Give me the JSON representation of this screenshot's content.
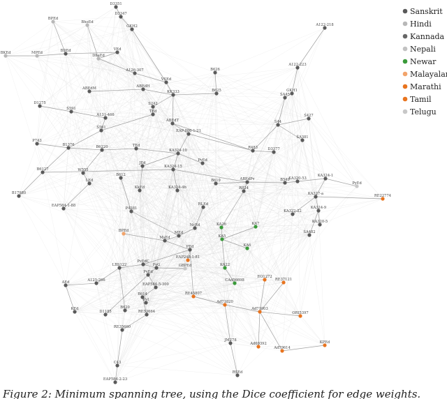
{
  "colors": {
    "Sanskrit": "#5a5a5a",
    "Hindi": "#b8b8b8",
    "Kannada": "#676767",
    "Nepali": "#c2c2c2",
    "Newar": "#3a9a3a",
    "Malayalam": "#f2a46b",
    "Marathi": "#e8741f",
    "Tamil": "#e8741f",
    "Telugu": "#c8c8c8"
  },
  "legend": [
    "Sanskrit",
    "Hindi",
    "Kannada",
    "Nepali",
    "Newar",
    "Malayalam",
    "Marathi",
    "Tamil",
    "Telugu"
  ],
  "nodes": [
    {
      "label": "D3351",
      "lang": "Sanskrit"
    },
    {
      "label": "D3347",
      "lang": "Sanskrit"
    },
    {
      "label": "BPEd",
      "lang": "Hindi"
    },
    {
      "label": "BhoEd",
      "lang": "Hindi"
    },
    {
      "label": "GKH2",
      "lang": "Sanskrit"
    },
    {
      "label": "A122-218",
      "lang": "Sanskrit"
    },
    {
      "label": "BKEd",
      "lang": "Hindi"
    },
    {
      "label": "MPEd",
      "lang": "Hindi"
    },
    {
      "label": "BDEd",
      "lang": "Sanskrit"
    },
    {
      "label": "VEd",
      "lang": "Sanskrit"
    },
    {
      "label": "DhaEd",
      "lang": "Hindi"
    },
    {
      "label": "A122-223",
      "lang": "Sanskrit"
    },
    {
      "label": "A126-307",
      "lang": "Sanskrit"
    },
    {
      "label": "B626",
      "lang": "Sanskrit"
    },
    {
      "label": "VSEd",
      "lang": "Sanskrit"
    },
    {
      "label": "ABEdM",
      "lang": "Sanskrit"
    },
    {
      "label": "ABEdH",
      "lang": "Sanskrit"
    },
    {
      "label": "KK333",
      "lang": "Sanskrit"
    },
    {
      "label": "B625",
      "lang": "Sanskrit"
    },
    {
      "label": "ŚA45",
      "lang": "Sanskrit"
    },
    {
      "label": "GKH1",
      "lang": "Sanskrit"
    },
    {
      "label": "D1275",
      "lang": "Sanskrit"
    },
    {
      "label": "Ś591",
      "lang": "Sanskrit"
    },
    {
      "label": "S242",
      "lang": "Sanskrit"
    },
    {
      "label": "A131-466",
      "lang": "Sanskrit"
    },
    {
      "label": "TEd",
      "lang": "Sanskrit"
    },
    {
      "label": "ABEdT",
      "lang": "Sanskrit"
    },
    {
      "label": "Ś427",
      "lang": "Sanskrit"
    },
    {
      "label": "Ś44",
      "lang": "Sanskrit"
    },
    {
      "label": "Ś561",
      "lang": "Sanskrit"
    },
    {
      "label": "EAP-886-1-21",
      "lang": "Sanskrit"
    },
    {
      "label": "ŚA381",
      "lang": "Sanskrit"
    },
    {
      "label": "P743",
      "lang": "Sanskrit"
    },
    {
      "label": "B1376",
      "lang": "Sanskrit"
    },
    {
      "label": "B6220",
      "lang": "Sanskrit"
    },
    {
      "label": "TEd",
      "lang": "Sanskrit"
    },
    {
      "label": "KA324-10",
      "lang": "Sanskrit"
    },
    {
      "label": "R483",
      "lang": "Sanskrit"
    },
    {
      "label": "D3377",
      "lang": "Sanskrit"
    },
    {
      "label": "PvEd",
      "lang": "Sanskrit"
    },
    {
      "label": "B6127",
      "lang": "Sanskrit"
    },
    {
      "label": "W555",
      "lang": "Sanskrit"
    },
    {
      "label": "JEd",
      "lang": "Sanskrit"
    },
    {
      "label": "KA324-15",
      "lang": "Sanskrit"
    },
    {
      "label": "LEd",
      "lang": "Sanskrit"
    },
    {
      "label": "B612",
      "lang": "Sanskrit"
    },
    {
      "label": "B619",
      "lang": "Sanskrit"
    },
    {
      "label": "ABEdPv",
      "lang": "Sanskrit"
    },
    {
      "label": "B549",
      "lang": "Sanskrit"
    },
    {
      "label": "KA320-53",
      "lang": "Sanskrit"
    },
    {
      "label": "KA324-1",
      "lang": "Sanskrit"
    },
    {
      "label": "PyEd",
      "lang": "Telugu"
    },
    {
      "label": "KkEd",
      "lang": "Sanskrit"
    },
    {
      "label": "KA324-4b",
      "lang": "Sanskrit"
    },
    {
      "label": "R824",
      "lang": "Sanskrit"
    },
    {
      "label": "KA327-a",
      "lang": "Sanskrit"
    },
    {
      "label": "B17980",
      "lang": "Sanskrit"
    },
    {
      "label": "RE22774",
      "lang": "Marathi"
    },
    {
      "label": "EAP584-1-88",
      "lang": "Sanskrit"
    },
    {
      "label": "RLEd",
      "lang": "Sanskrit"
    },
    {
      "label": "P4281",
      "lang": "Sanskrit"
    },
    {
      "label": "KA322-22",
      "lang": "Sanskrit"
    },
    {
      "label": "KA324-9",
      "lang": "Sanskrit"
    },
    {
      "label": "KA320-5",
      "lang": "Sanskrit"
    },
    {
      "label": "KA26",
      "lang": "Newar"
    },
    {
      "label": "KA7",
      "lang": "Newar"
    },
    {
      "label": "BPEd",
      "lang": "Malayalam"
    },
    {
      "label": "NcEd",
      "lang": "Sanskrit"
    },
    {
      "label": "MEd",
      "lang": "Sanskrit"
    },
    {
      "label": "ŚA482",
      "lang": "Sanskrit"
    },
    {
      "label": "MsEd",
      "lang": "Sanskrit"
    },
    {
      "label": "KA5",
      "lang": "Newar"
    },
    {
      "label": "PEd",
      "lang": "Sanskrit"
    },
    {
      "label": "KA6",
      "lang": "Newar"
    },
    {
      "label": "EAP248-1-81",
      "lang": "Marathi"
    },
    {
      "label": "PvEdC",
      "lang": "Sanskrit"
    },
    {
      "label": "LBS122",
      "lang": "Sanskrit"
    },
    {
      "label": "PvG",
      "lang": "Sanskrit"
    },
    {
      "label": "GBPEd",
      "lang": "Telugu"
    },
    {
      "label": "KA22",
      "lang": "Newar"
    },
    {
      "label": "PvEd",
      "lang": "Sanskrit"
    },
    {
      "label": "EO1272",
      "lang": "Marathi"
    },
    {
      "label": "A125-266",
      "lang": "Sanskrit"
    },
    {
      "label": "CAd56698",
      "lang": "Newar"
    },
    {
      "label": "RE37121",
      "lang": "Marathi"
    },
    {
      "label": "AEd",
      "lang": "Sanskrit"
    },
    {
      "label": "EAP584-5-300",
      "lang": "Sanskrit"
    },
    {
      "label": "B614",
      "lang": "Sanskrit"
    },
    {
      "label": "RE45807",
      "lang": "Marathi"
    },
    {
      "label": "PvI",
      "lang": "Sanskrit"
    },
    {
      "label": "Ad71820",
      "lang": "Marathi"
    },
    {
      "label": "Ad71003",
      "lang": "Marathi"
    },
    {
      "label": "KEd",
      "lang": "Sanskrit"
    },
    {
      "label": "D1185",
      "lang": "Sanskrit"
    },
    {
      "label": "B620",
      "lang": "Sanskrit"
    },
    {
      "label": "RE53664",
      "lang": "Sanskrit"
    },
    {
      "label": "ORI5397",
      "lang": "Marathi"
    },
    {
      "label": "RE35660",
      "lang": "Sanskrit"
    },
    {
      "label": "JM278",
      "lang": "Sanskrit"
    },
    {
      "label": "Ad69392",
      "lang": "Marathi"
    },
    {
      "label": "KPEd",
      "lang": "Marathi"
    },
    {
      "label": "Ad79614",
      "lang": "Marathi"
    },
    {
      "label": "C43",
      "lang": "Sanskrit"
    },
    {
      "label": "EAP584-2-23",
      "lang": "Sanskrit"
    },
    {
      "label": "RSEd",
      "lang": "Sanskrit"
    }
  ],
  "caption": "Figure 2: Minimum spanning tree, using the Dice coefficient for edge weights."
}
